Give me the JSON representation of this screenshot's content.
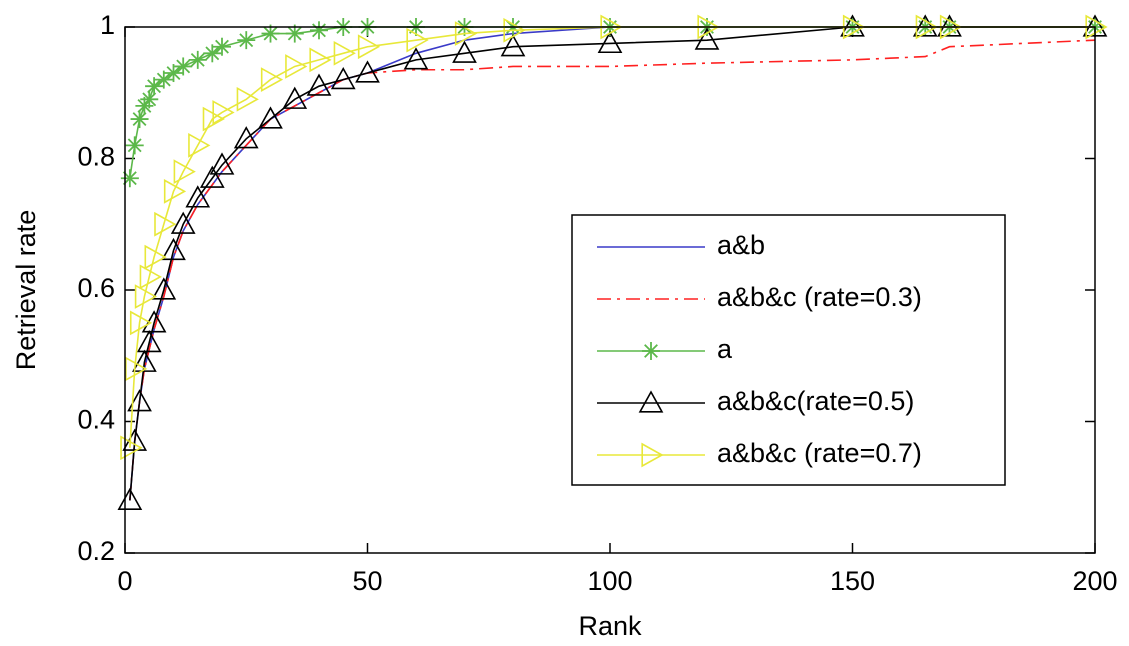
{
  "chart_data": {
    "type": "line",
    "xlabel": "Rank",
    "ylabel": "Retrieval rate",
    "x": [
      1,
      2,
      3,
      4,
      5,
      6,
      8,
      10,
      12,
      15,
      18,
      20,
      25,
      30,
      35,
      40,
      45,
      50,
      60,
      70,
      80,
      100,
      120,
      150,
      165,
      170,
      200
    ],
    "series": [
      {
        "name": "a&b",
        "color": "#3a3ac8",
        "linestyle": "solid",
        "marker": "none",
        "values": [
          0.28,
          0.37,
          0.43,
          0.48,
          0.51,
          0.54,
          0.59,
          0.65,
          0.69,
          0.73,
          0.76,
          0.78,
          0.82,
          0.86,
          0.88,
          0.9,
          0.92,
          0.93,
          0.96,
          0.98,
          0.99,
          1,
          1,
          1,
          1,
          1,
          1
        ]
      },
      {
        "name": "a&b&c (rate=0.3)",
        "color": "#ff2020",
        "linestyle": "dashdot",
        "marker": "none",
        "values": [
          0.28,
          0.37,
          0.43,
          0.48,
          0.51,
          0.54,
          0.59,
          0.65,
          0.69,
          0.73,
          0.76,
          0.78,
          0.82,
          0.86,
          0.88,
          0.9,
          0.92,
          0.93,
          0.935,
          0.935,
          0.94,
          0.94,
          0.945,
          0.95,
          0.955,
          0.97,
          0.98
        ]
      },
      {
        "name": "a",
        "color": "#5cb84a",
        "linestyle": "solid",
        "marker": "star",
        "values": [
          0.77,
          0.82,
          0.86,
          0.88,
          0.89,
          0.91,
          0.92,
          0.93,
          0.94,
          0.95,
          0.96,
          0.97,
          0.98,
          0.99,
          0.99,
          0.995,
          1,
          1,
          1,
          1,
          1,
          1,
          1,
          1,
          1,
          1,
          1
        ]
      },
      {
        "name": "a&b&c(rate=0.5)",
        "color": "#000000",
        "linestyle": "solid",
        "marker": "triangle",
        "values": [
          0.28,
          0.37,
          0.43,
          0.49,
          0.52,
          0.55,
          0.6,
          0.66,
          0.7,
          0.74,
          0.77,
          0.79,
          0.83,
          0.86,
          0.89,
          0.91,
          0.92,
          0.93,
          0.95,
          0.96,
          0.97,
          0.975,
          0.98,
          1,
          1,
          1,
          1
        ]
      },
      {
        "name": "a&b&c (rate=0.7)",
        "color": "#e8e83a",
        "linestyle": "solid",
        "marker": "triangle-right",
        "values": [
          0.36,
          0.48,
          0.55,
          0.59,
          0.62,
          0.65,
          0.7,
          0.75,
          0.78,
          0.82,
          0.86,
          0.87,
          0.89,
          0.92,
          0.94,
          0.95,
          0.96,
          0.97,
          0.98,
          0.99,
          0.995,
          1,
          1,
          1,
          1,
          1,
          1
        ]
      }
    ],
    "xlim": [
      0,
      200
    ],
    "xticks": [
      0,
      50,
      100,
      150,
      200
    ],
    "ylim": [
      0.2,
      1
    ],
    "yticks": [
      0.2,
      0.4,
      0.6,
      0.8,
      1
    ],
    "grid": false,
    "legend_loc": "east"
  }
}
